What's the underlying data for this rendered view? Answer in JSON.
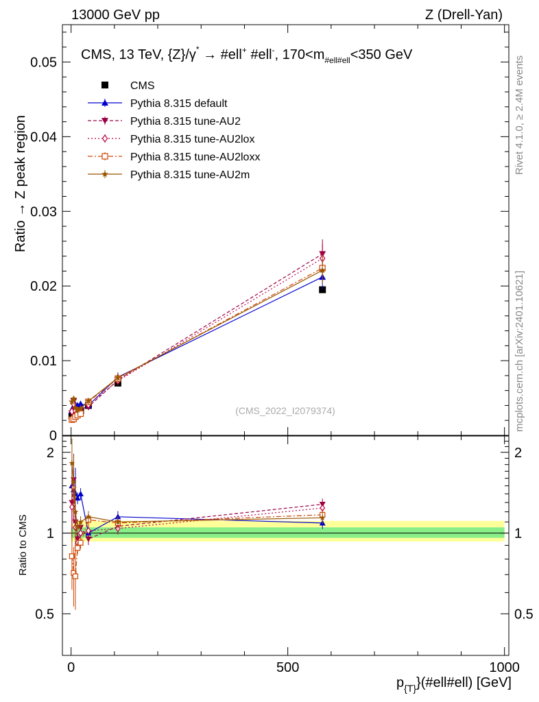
{
  "header": {
    "left": "13000 GeV pp",
    "right": "Z (Drell-Yan)"
  },
  "side": {
    "rivet": "Rivet 4.1.0, ≥ 2.4M events",
    "mcplots": "mcplots.cern.ch [arXiv:2401.10621]"
  },
  "chart_data": {
    "type": "line",
    "title": "CMS, 13 TeV, {Z}/γ* → #ell⁺ #ell⁻, 170<m_{#ell#ell}<350 GeV",
    "title_parts": {
      "pre": "CMS, 13 TeV, {Z}/γ",
      "star": "*",
      "arrow": "→",
      "l1": "#ell",
      "plus": "+",
      "l2": "#ell",
      "minus": "-",
      "comma_range": ", 170<m",
      "subscript": "#ell#ell",
      "post": "<350 GeV"
    },
    "watermark": "(CMS_2022_I2079374)",
    "ylabel": "Ratio → Z peak region",
    "ratio_ylabel": "Ratio to CMS",
    "xlabel_main": "p",
    "xlabel_sub": "{T}",
    "xlabel_rest": "}(#ell#ell) [GeV]",
    "xlim": [
      -20,
      1010
    ],
    "ylim": [
      0,
      0.055
    ],
    "ratio_ylim": [
      0.35,
      2.3
    ],
    "x_ticks": [
      0,
      500,
      1000
    ],
    "y_ticks": [
      0,
      0.01,
      0.02,
      0.03,
      0.04,
      0.05
    ],
    "y_tick_labels": [
      "0",
      "0.01",
      "0.02",
      "0.03",
      "0.04",
      "0.05"
    ],
    "ratio_ticks": [
      0.5,
      1,
      2
    ],
    "ratio_tick_labels": [
      "0.5",
      "1",
      "2"
    ],
    "x": [
      2,
      6,
      10,
      15,
      22,
      40,
      108,
      580
    ],
    "series": [
      {
        "name": "CMS",
        "color": "#000000",
        "marker": "square",
        "values": [
          0.0026,
          0.0031,
          0.003,
          0.0031,
          0.0033,
          0.004,
          0.007,
          0.0195
        ]
      },
      {
        "name": "Pythia 8.315 default",
        "color": "#0000cc",
        "marker": "triangle-up",
        "dash": "",
        "values": [
          0.0033,
          0.0039,
          0.0041,
          0.004,
          0.0042,
          0.004,
          0.0078,
          0.0212
        ],
        "ratio": [
          1.5,
          1.45,
          1.4,
          1.35,
          1.4,
          1.0,
          1.15,
          1.09
        ]
      },
      {
        "name": "Pythia 8.315 tune-AU2",
        "color": "#990044",
        "marker": "triangle-down",
        "dash": "5,3",
        "values": [
          0.003,
          0.0046,
          0.0034,
          0.0033,
          0.0034,
          0.0038,
          0.0074,
          0.0243
        ],
        "ratio": [
          1.3,
          1.58,
          1.1,
          0.95,
          1.05,
          0.95,
          1.06,
          1.28
        ]
      },
      {
        "name": "Pythia 8.315 tune-AU2lox",
        "color": "#bb0044",
        "marker": "diamond-open",
        "dash": "2,3",
        "values": [
          0.0032,
          0.0042,
          0.0033,
          0.0031,
          0.0032,
          0.0041,
          0.0073,
          0.0237
        ],
        "ratio": [
          1.25,
          1.48,
          1.05,
          0.92,
          1.0,
          1.02,
          1.04,
          1.24
        ]
      },
      {
        "name": "Pythia 8.315 tune-AU2loxx",
        "color": "#cc4400",
        "marker": "square-open",
        "dash": "7,3,2,3",
        "values": [
          0.0021,
          0.0022,
          0.0025,
          0.0027,
          0.0029,
          0.0045,
          0.0076,
          0.0224
        ],
        "ratio": [
          0.82,
          0.71,
          0.69,
          0.88,
          0.92,
          1.12,
          1.09,
          1.17
        ]
      },
      {
        "name": "Pythia 8.315 tune-AU2m",
        "color": "#995500",
        "marker": "star",
        "dash": "",
        "values": [
          0.0045,
          0.0049,
          0.0037,
          0.0034,
          0.0036,
          0.0046,
          0.0077,
          0.0221
        ],
        "ratio": [
          1.82,
          1.55,
          1.2,
          1.05,
          1.1,
          1.15,
          1.1,
          1.14
        ]
      }
    ]
  }
}
